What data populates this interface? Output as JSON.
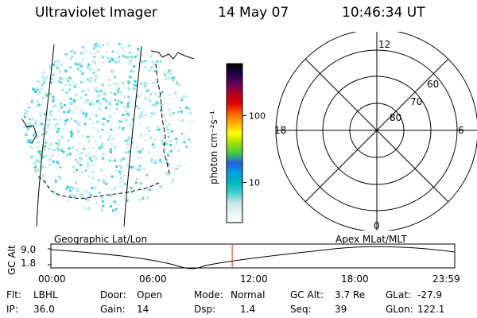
{
  "header": {
    "instrument": "Ultraviolet Imager",
    "date": "14 May 07",
    "time": "10:46:34 UT"
  },
  "image_panel": {
    "label": "Geographic Lat/Lon",
    "colors": [
      "#9ee8e8",
      "#7adcdc",
      "#40d0d0",
      "#b8ecec",
      "#d8f2f2"
    ]
  },
  "colorbar": {
    "unit_label": "photon cm⁻²s⁻¹",
    "ticks": [
      {
        "label": "100",
        "value": 100
      },
      {
        "label": "10",
        "value": 10
      }
    ],
    "min": 2.5,
    "max": 600,
    "scale": "log",
    "colors": [
      "#ffffff",
      "#e8f4f4",
      "#c8e4e4",
      "#40d0d0",
      "#00b8b8",
      "#00a0e0",
      "#2060e0",
      "#40d040",
      "#a0e000",
      "#ffff00",
      "#ffb000",
      "#ff6000",
      "#e00000",
      "#b00020",
      "#600060",
      "#200040",
      "#000000"
    ]
  },
  "polar_panel": {
    "label": "Apex  MLat/MLT",
    "mlt_labels": {
      "top": "12",
      "bottom": "0",
      "left": "18",
      "right": "6"
    },
    "lat_labels": [
      "60",
      "70",
      "80"
    ]
  },
  "timeline": {
    "ylabel": "GC Alt",
    "y_ticks": [
      "9.0",
      "1.8"
    ],
    "x_ticks": [
      "00:00",
      "06:00",
      "12:00",
      "18:00",
      "23:59"
    ],
    "current_time_hours": 10.776
  },
  "footer": {
    "rows": [
      [
        {
          "label": "Flt:",
          "value": "LBHL"
        },
        {
          "label": "Door:",
          "value": "Open"
        },
        {
          "label": "Mode:",
          "value": "Normal"
        },
        {
          "label": "GC Alt:",
          "value": "3.7 Re"
        },
        {
          "label": "GLat:",
          "value": "-27.9"
        }
      ],
      [
        {
          "label": "IP:",
          "value": "36.0"
        },
        {
          "label": "Gain:",
          "value": "14"
        },
        {
          "label": "Dsp:",
          "value": "1.4"
        },
        {
          "label": "Seq:",
          "value": "39"
        },
        {
          "label": "GLon:",
          "value": "122.1"
        }
      ]
    ]
  }
}
